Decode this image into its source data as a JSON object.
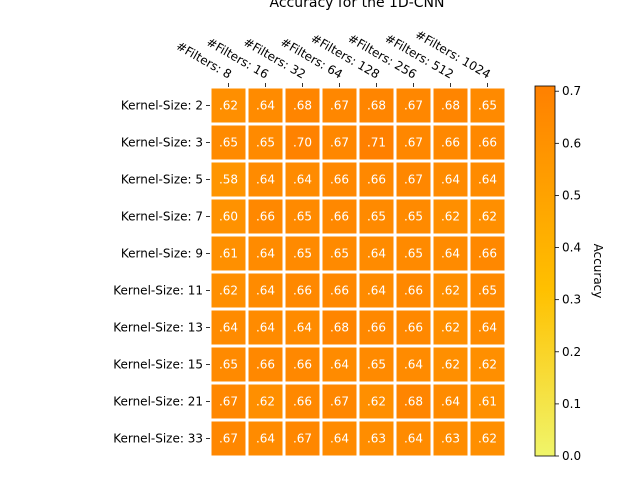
{
  "chart_data": {
    "type": "heatmap",
    "title": "Accuracy for the 1D-CNN",
    "x_categories": [
      "#Filters: 8",
      "#Filters: 16",
      "#Filters: 32",
      "#Filters: 64",
      "#Filters: 128",
      "#Filters: 256",
      "#Filters: 512",
      "#Filters: 1024"
    ],
    "y_categories": [
      "Kernel-Size: 2",
      "Kernel-Size: 3",
      "Kernel-Size: 5",
      "Kernel-Size: 7",
      "Kernel-Size: 9",
      "Kernel-Size: 11",
      "Kernel-Size: 13",
      "Kernel-Size: 15",
      "Kernel-Size: 21",
      "Kernel-Size: 33"
    ],
    "values": [
      [
        0.62,
        0.64,
        0.68,
        0.67,
        0.68,
        0.67,
        0.68,
        0.65
      ],
      [
        0.65,
        0.65,
        0.7,
        0.67,
        0.71,
        0.67,
        0.66,
        0.66
      ],
      [
        0.58,
        0.64,
        0.64,
        0.66,
        0.66,
        0.67,
        0.64,
        0.64
      ],
      [
        0.6,
        0.66,
        0.65,
        0.66,
        0.65,
        0.65,
        0.62,
        0.62
      ],
      [
        0.61,
        0.64,
        0.65,
        0.65,
        0.64,
        0.65,
        0.64,
        0.66
      ],
      [
        0.62,
        0.64,
        0.66,
        0.66,
        0.64,
        0.66,
        0.62,
        0.65
      ],
      [
        0.64,
        0.64,
        0.64,
        0.68,
        0.66,
        0.66,
        0.62,
        0.64
      ],
      [
        0.65,
        0.66,
        0.66,
        0.64,
        0.65,
        0.64,
        0.62,
        0.62
      ],
      [
        0.67,
        0.62,
        0.66,
        0.67,
        0.62,
        0.68,
        0.64,
        0.61
      ],
      [
        0.67,
        0.64,
        0.67,
        0.64,
        0.63,
        0.64,
        0.63,
        0.62
      ]
    ],
    "cell_labels": [
      [
        ".62",
        ".64",
        ".68",
        ".67",
        ".68",
        ".67",
        ".68",
        ".65"
      ],
      [
        ".65",
        ".65",
        ".70",
        ".67",
        ".71",
        ".67",
        ".66",
        ".66"
      ],
      [
        ".58",
        ".64",
        ".64",
        ".66",
        ".66",
        ".67",
        ".64",
        ".64"
      ],
      [
        ".60",
        ".66",
        ".65",
        ".66",
        ".65",
        ".65",
        ".62",
        ".62"
      ],
      [
        ".61",
        ".64",
        ".65",
        ".65",
        ".64",
        ".65",
        ".64",
        ".66"
      ],
      [
        ".62",
        ".64",
        ".66",
        ".66",
        ".64",
        ".66",
        ".62",
        ".65"
      ],
      [
        ".64",
        ".64",
        ".64",
        ".68",
        ".66",
        ".66",
        ".62",
        ".64"
      ],
      [
        ".65",
        ".66",
        ".66",
        ".64",
        ".65",
        ".64",
        ".62",
        ".62"
      ],
      [
        ".67",
        ".62",
        ".66",
        ".67",
        ".62",
        ".68",
        ".64",
        ".61"
      ],
      [
        ".67",
        ".64",
        ".67",
        ".64",
        ".63",
        ".64",
        ".63",
        ".62"
      ]
    ],
    "colorbar": {
      "label": "Accuracy",
      "range": [
        0.0,
        0.71
      ],
      "ticks": [
        0.0,
        0.1,
        0.2,
        0.3,
        0.4,
        0.5,
        0.6,
        0.7
      ],
      "tick_labels": [
        "0.0",
        "0.1",
        "0.2",
        "0.3",
        "0.4",
        "0.5",
        "0.6",
        "0.7"
      ],
      "color_low": "#f0f56a",
      "color_mid": "#ffc000",
      "color_high": "#ff8000"
    },
    "cell_text_color": "#ffffff",
    "grid_line_color": "#ffffff",
    "x_label_position": "top",
    "x_label_rotation": "-30deg"
  }
}
